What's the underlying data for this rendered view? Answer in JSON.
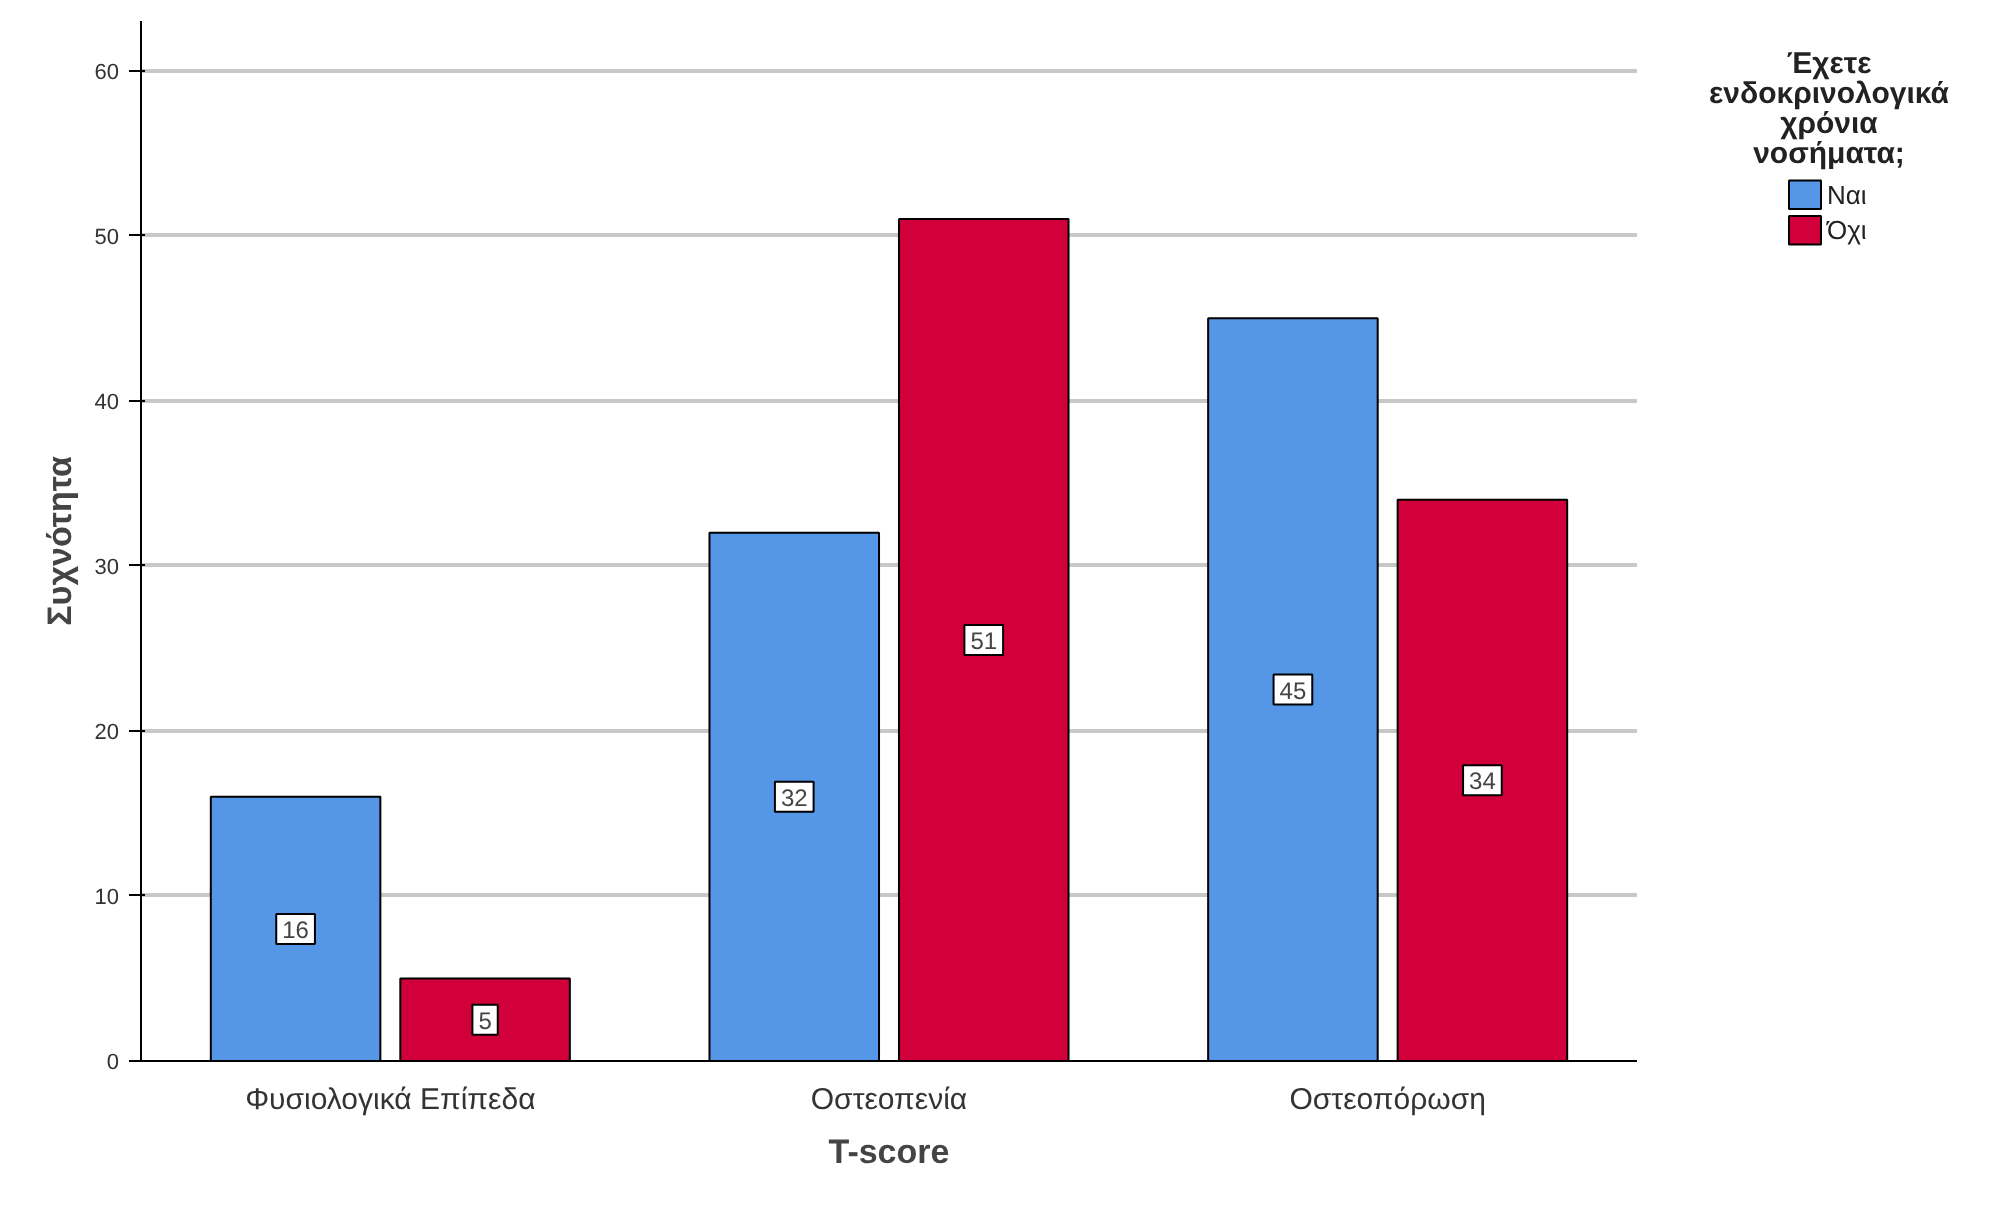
{
  "chart_data": {
    "type": "bar",
    "xlabel": "T-score",
    "ylabel": "Συχνότητα",
    "legend_title": "Έχετε ενδοκρινολογικά χρόνια νοσήματα;",
    "categories": [
      "Φυσιολογικά Επίπεδα",
      "Οστεοπενία",
      "Οστεοπόρωση"
    ],
    "series": [
      {
        "name": "Ναι",
        "color": "#5596e6",
        "values": [
          16,
          32,
          45
        ]
      },
      {
        "name": "Όχι",
        "color": "#d1003a",
        "values": [
          5,
          51,
          34
        ]
      }
    ],
    "ylim": [
      0,
      63
    ],
    "yticks": [
      0,
      10,
      20,
      30,
      40,
      50,
      60
    ],
    "grid": "y",
    "legend": "top right",
    "data_labels": true
  }
}
